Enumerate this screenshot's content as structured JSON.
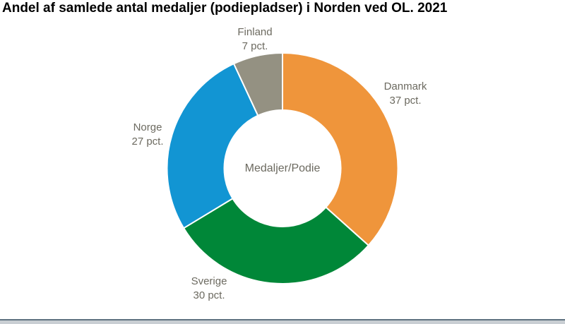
{
  "title": "Andel af samlede antal medaljer (podiepladser) i Norden ved OL. 2021",
  "chart_data": {
    "type": "pie",
    "subtype": "donut",
    "title": "Andel af samlede antal medaljer (podiepladser) i Norden ved OL. 2021",
    "center_label": "Medaljer/Podie",
    "unit": "pct.",
    "categories": [
      "Danmark",
      "Sverige",
      "Norge",
      "Finland"
    ],
    "values": [
      37,
      30,
      27,
      7
    ],
    "start_angle_deg": 0,
    "direction": "clockwise",
    "labels_position": "outside",
    "legend_position": "none",
    "slices": [
      {
        "label": "Danmark",
        "value": 37,
        "value_label": "37 pct.",
        "color": "#EF953B"
      },
      {
        "label": "Sverige",
        "value": 30,
        "value_label": "30 pct.",
        "color": "#008738"
      },
      {
        "label": "Norge",
        "value": 27,
        "value_label": "27 pct.",
        "color": "#1295D3"
      },
      {
        "label": "Finland",
        "value": 7,
        "value_label": "7 pct.",
        "color": "#949182"
      }
    ]
  },
  "colors": {
    "background": "#FFFFFF",
    "title_text": "#000000",
    "label_text": "#6C6A60",
    "divider_dark": "#5F7280",
    "divider_light": "#C9CED3"
  }
}
